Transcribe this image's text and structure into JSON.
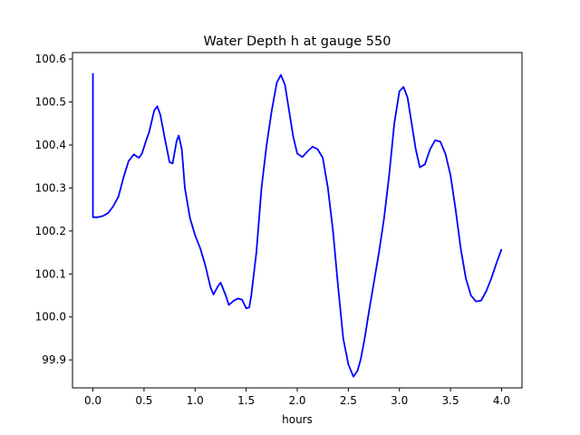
{
  "chart_data": {
    "type": "line",
    "title": "Water Depth h at gauge 550",
    "xlabel": "hours",
    "ylabel": "",
    "xlim": [
      -0.2,
      4.2
    ],
    "ylim": [
      99.835,
      100.615
    ],
    "xticks": [
      0.0,
      0.5,
      1.0,
      1.5,
      2.0,
      2.5,
      3.0,
      3.5,
      4.0
    ],
    "xtick_labels": [
      "0.0",
      "0.5",
      "1.0",
      "1.5",
      "2.0",
      "2.5",
      "3.0",
      "3.5",
      "4.0"
    ],
    "yticks": [
      99.9,
      100.0,
      100.1,
      100.2,
      100.3,
      100.4,
      100.5,
      100.6
    ],
    "ytick_labels": [
      "99.9",
      "100.0",
      "100.1",
      "100.2",
      "100.3",
      "100.4",
      "100.5",
      "100.6"
    ],
    "grid": false,
    "series": [
      {
        "color": "#0000ff",
        "x": [
          0.0,
          0.0,
          0.0,
          0.05,
          0.1,
          0.15,
          0.2,
          0.25,
          0.3,
          0.35,
          0.4,
          0.45,
          0.48,
          0.52,
          0.55,
          0.6,
          0.63,
          0.66,
          0.7,
          0.75,
          0.78,
          0.82,
          0.84,
          0.87,
          0.9,
          0.95,
          1.0,
          1.05,
          1.1,
          1.15,
          1.18,
          1.22,
          1.25,
          1.3,
          1.33,
          1.38,
          1.42,
          1.46,
          1.5,
          1.53,
          1.55,
          1.6,
          1.65,
          1.7,
          1.75,
          1.8,
          1.84,
          1.88,
          1.92,
          1.96,
          2.0,
          2.05,
          2.1,
          2.15,
          2.2,
          2.25,
          2.3,
          2.35,
          2.4,
          2.45,
          2.5,
          2.55,
          2.59,
          2.62,
          2.66,
          2.7,
          2.75,
          2.8,
          2.85,
          2.9,
          2.95,
          3.0,
          3.04,
          3.08,
          3.12,
          3.16,
          3.2,
          3.25,
          3.3,
          3.35,
          3.4,
          3.45,
          3.5,
          3.55,
          3.6,
          3.65,
          3.7,
          3.75,
          3.8,
          3.85,
          3.9,
          3.95,
          4.0
        ],
        "y": [
          100.567,
          100.4,
          100.232,
          100.232,
          100.235,
          100.242,
          100.258,
          100.28,
          100.325,
          100.363,
          100.378,
          100.37,
          100.38,
          100.41,
          100.43,
          100.48,
          100.49,
          100.47,
          100.42,
          100.36,
          100.357,
          100.41,
          100.422,
          100.39,
          100.3,
          100.23,
          100.19,
          100.16,
          100.12,
          100.07,
          100.052,
          100.07,
          100.08,
          100.05,
          100.028,
          100.038,
          100.043,
          100.04,
          100.02,
          100.022,
          100.05,
          100.15,
          100.3,
          100.4,
          100.48,
          100.545,
          100.563,
          100.54,
          100.48,
          100.42,
          100.38,
          100.372,
          100.385,
          100.396,
          100.39,
          100.37,
          100.3,
          100.2,
          100.07,
          99.95,
          99.89,
          99.861,
          99.875,
          99.9,
          99.95,
          100.01,
          100.08,
          100.15,
          100.23,
          100.33,
          100.45,
          100.525,
          100.535,
          100.51,
          100.45,
          100.39,
          100.348,
          100.355,
          100.39,
          100.411,
          100.408,
          100.38,
          100.33,
          100.25,
          100.16,
          100.09,
          100.05,
          100.036,
          100.038,
          100.06,
          100.09,
          100.125,
          100.158
        ]
      }
    ]
  }
}
